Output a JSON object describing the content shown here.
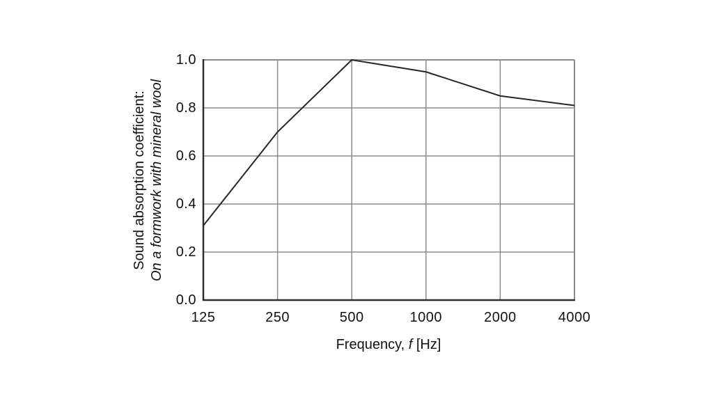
{
  "chart_data": {
    "type": "line",
    "title": "",
    "x": [
      125,
      250,
      500,
      1000,
      2000,
      4000
    ],
    "x_tick_labels": [
      "125",
      "250",
      "500",
      "1000",
      "2000",
      "4000"
    ],
    "y_ticks": [
      1.0,
      0.8,
      0.6,
      0.4,
      0.2,
      0.0
    ],
    "y_tick_labels": [
      "1.0",
      "0.8",
      "0.6",
      "0.4",
      "0.2",
      "0.0"
    ],
    "series": [
      {
        "name": "Sound absorption coefficient on a formwork with mineral wool",
        "values": [
          0.31,
          0.7,
          1.0,
          0.95,
          0.85,
          0.81
        ]
      }
    ],
    "xlabel": "Frequency, f [Hz]",
    "xlabel_parts": {
      "prefix": "Frequency, ",
      "symbol": "f",
      "suffix": " [Hz]"
    },
    "ylabel_line1": "Sound absorption coefficient:",
    "ylabel_line2": "On a formwork with mineral wool",
    "x_scale": "log2-octave-equal-spacing",
    "xlim": [
      125,
      4000
    ],
    "ylim": [
      0.0,
      1.0
    ],
    "grid": true,
    "legend": "none"
  },
  "colors": {
    "background": "#ffffff",
    "grid": "#8c8c8c",
    "frame_light": "#8c8c8c",
    "axis_dark": "#2e2e2e",
    "curve": "#262626",
    "text": "#111111"
  }
}
